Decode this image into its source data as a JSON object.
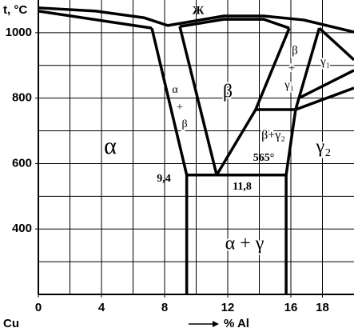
{
  "chart_data": {
    "type": "phase-diagram",
    "y_label": "t, °C",
    "x_start_label": "Cu",
    "x_label": "% Al",
    "xlim": [
      0,
      20
    ],
    "ylim": [
      200,
      1100
    ],
    "xticks": [
      0,
      4,
      8,
      12,
      16,
      18
    ],
    "yticks": [
      400,
      600,
      800,
      1000
    ],
    "xgrid": [
      2,
      4,
      6,
      8,
      10,
      12,
      14,
      16,
      18
    ],
    "ygrid": [
      300,
      400,
      500,
      600,
      700,
      800,
      900,
      1000
    ],
    "grid": true,
    "color": "#000000",
    "lines": [
      {
        "x": [
          0,
          3.65,
          6.68,
          8.2,
          11.75,
          14.28,
          16.8,
          20
        ],
        "values": [
          1076,
          1066,
          1046,
          1022,
          1051,
          1051,
          1039,
          1002
        ]
      },
      {
        "x": [
          0,
          7.19
        ],
        "values": [
          1066,
          1014
        ]
      },
      {
        "x": [
          8.96,
          11.75,
          14.28,
          15.9
        ],
        "values": [
          1019,
          1041,
          1041,
          1014
        ]
      },
      {
        "x": [
          7.19,
          9.4,
          9.4
        ],
        "values": [
          1014,
          565,
          200
        ]
      },
      {
        "x": [
          8.96,
          11.3
        ],
        "values": [
          1019,
          565
        ]
      },
      {
        "x": [
          9.4,
          15.7
        ],
        "values": [
          565,
          565
        ]
      },
      {
        "x": [
          11.3,
          13.77,
          16.3
        ],
        "values": [
          565,
          765,
          765
        ]
      },
      {
        "x": [
          15.9,
          13.77
        ],
        "values": [
          1014,
          765
        ]
      },
      {
        "x": [
          17.8,
          16.3,
          15.7,
          15.7
        ],
        "values": [
          1014,
          765,
          565,
          200
        ]
      },
      {
        "x": [
          17.8,
          20
        ],
        "values": [
          1014,
          917
        ]
      },
      {
        "x": [
          16.3,
          20
        ],
        "values": [
          765,
          831
        ]
      },
      {
        "x": [
          16.5,
          20
        ],
        "values": [
          800,
          885
        ]
      }
    ],
    "annotations": [
      "Ж",
      "α",
      "β",
      "α",
      "+",
      "β",
      "β",
      "+",
      "γ₁",
      "γ₁",
      "β+γ₂",
      "γ₂",
      "565°",
      "9,4",
      "11,8",
      "α + γ"
    ]
  }
}
